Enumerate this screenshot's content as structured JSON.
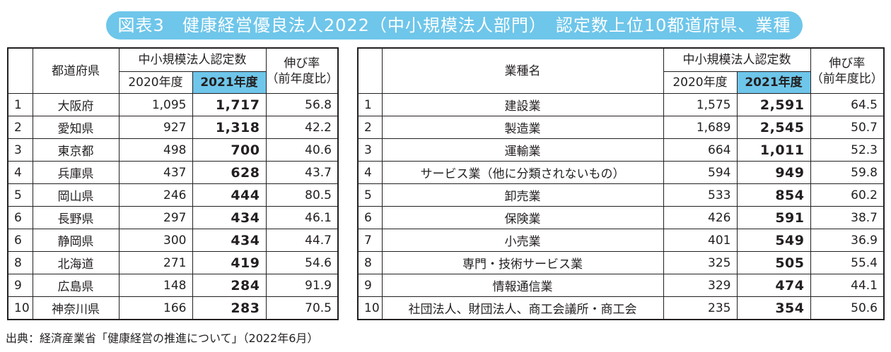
{
  "title": "図表3　健康経営優良法人2022（中小規模法人部門）　認定数上位10都道府県、業種",
  "headers": {
    "prefecture": "都道府県",
    "industry": "業種名",
    "count_group": "中小規模法人認定数",
    "year2020": "2020年度",
    "year2021": "2021年度",
    "growth_line1": "伸び率",
    "growth_line2": "（前年度比）"
  },
  "colors": {
    "accent": "#6ec6ea",
    "text": "#231f20"
  },
  "prefectures": [
    {
      "rank": "1",
      "name": "大阪府",
      "y2020": "1,095",
      "y2021": "1,717",
      "growth": "56.8"
    },
    {
      "rank": "2",
      "name": "愛知県",
      "y2020": "927",
      "y2021": "1,318",
      "growth": "42.2"
    },
    {
      "rank": "3",
      "name": "東京都",
      "y2020": "498",
      "y2021": "700",
      "growth": "40.6"
    },
    {
      "rank": "4",
      "name": "兵庫県",
      "y2020": "437",
      "y2021": "628",
      "growth": "43.7"
    },
    {
      "rank": "5",
      "name": "岡山県",
      "y2020": "246",
      "y2021": "444",
      "growth": "80.5"
    },
    {
      "rank": "6",
      "name": "長野県",
      "y2020": "297",
      "y2021": "434",
      "growth": "46.1"
    },
    {
      "rank": "6",
      "name": "静岡県",
      "y2020": "300",
      "y2021": "434",
      "growth": "44.7"
    },
    {
      "rank": "8",
      "name": "北海道",
      "y2020": "271",
      "y2021": "419",
      "growth": "54.6"
    },
    {
      "rank": "9",
      "name": "広島県",
      "y2020": "148",
      "y2021": "284",
      "growth": "91.9"
    },
    {
      "rank": "10",
      "name": "神奈川県",
      "y2020": "166",
      "y2021": "283",
      "growth": "70.5"
    }
  ],
  "industries": [
    {
      "rank": "1",
      "name": "建設業",
      "y2020": "1,575",
      "y2021": "2,591",
      "growth": "64.5"
    },
    {
      "rank": "2",
      "name": "製造業",
      "y2020": "1,689",
      "y2021": "2,545",
      "growth": "50.7"
    },
    {
      "rank": "3",
      "name": "運輸業",
      "y2020": "664",
      "y2021": "1,011",
      "growth": "52.3"
    },
    {
      "rank": "4",
      "name": "サービス業（他に分類されないもの）",
      "y2020": "594",
      "y2021": "949",
      "growth": "59.8"
    },
    {
      "rank": "5",
      "name": "卸売業",
      "y2020": "533",
      "y2021": "854",
      "growth": "60.2"
    },
    {
      "rank": "6",
      "name": "保険業",
      "y2020": "426",
      "y2021": "591",
      "growth": "38.7"
    },
    {
      "rank": "7",
      "name": "小売業",
      "y2020": "401",
      "y2021": "549",
      "growth": "36.9"
    },
    {
      "rank": "8",
      "name": "専門・技術サービス業",
      "y2020": "325",
      "y2021": "505",
      "growth": "55.4"
    },
    {
      "rank": "9",
      "name": "情報通信業",
      "y2020": "329",
      "y2021": "474",
      "growth": "44.1"
    },
    {
      "rank": "10",
      "name": "社団法人、財団法人、商工会議所・商工会",
      "y2020": "235",
      "y2021": "354",
      "growth": "50.6"
    }
  ],
  "source": "出典：経済産業省「健康経営の推進について」（2022年6月）"
}
